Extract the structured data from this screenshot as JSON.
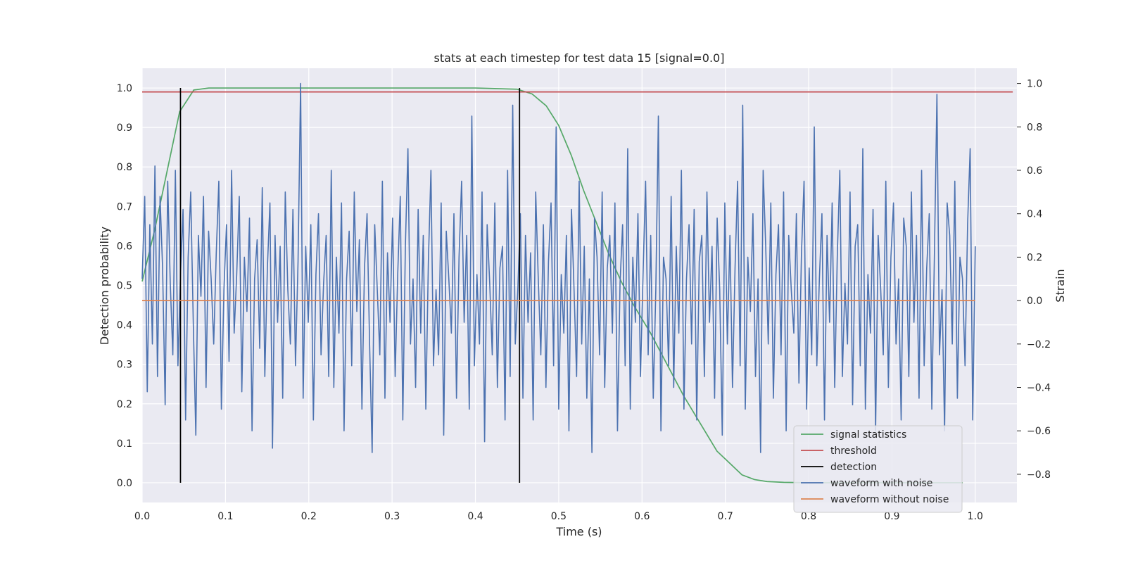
{
  "chart_data": {
    "type": "line",
    "title": "stats at each timestep for test data 15 [signal=0.0]",
    "xlabel": "Time (s)",
    "ylabel": "Detection probability",
    "y2label": "Strain",
    "xlim": [
      0.0,
      1.05
    ],
    "ylim": [
      -0.05,
      1.05
    ],
    "y2lim": [
      -0.93,
      1.07
    ],
    "grid": true,
    "legend_position": "lower right",
    "xticks": [
      0.0,
      0.1,
      0.2,
      0.3,
      0.4,
      0.5,
      0.6,
      0.7,
      0.8,
      0.9,
      1.0
    ],
    "xtick_labels": [
      "0.0",
      "0.1",
      "0.2",
      "0.3",
      "0.4",
      "0.5",
      "0.6",
      "0.7",
      "0.8",
      "0.9",
      "1.0"
    ],
    "yticks": [
      0.0,
      0.1,
      0.2,
      0.3,
      0.4,
      0.5,
      0.6,
      0.7,
      0.8,
      0.9,
      1.0
    ],
    "ytick_labels": [
      "0.0",
      "0.1",
      "0.2",
      "0.3",
      "0.4",
      "0.5",
      "0.6",
      "0.7",
      "0.8",
      "0.9",
      "1.0"
    ],
    "y2ticks": [
      -0.8,
      -0.6,
      -0.4,
      -0.2,
      0.0,
      0.2,
      0.4,
      0.6,
      0.8,
      1.0
    ],
    "y2tick_labels": [
      "−0.8",
      "−0.6",
      "−0.4",
      "−0.2",
      "0.0",
      "0.2",
      "0.4",
      "0.6",
      "0.8",
      "1.0"
    ],
    "colors": {
      "background": "#eaeaf2",
      "grid": "#ffffff",
      "signal_statistics": "#55a868",
      "threshold": "#c44e52",
      "detection": "#000000",
      "waveform_with_noise": "#4c72b0",
      "waveform_without_noise": "#dd8452"
    },
    "series": [
      {
        "name": "signal statistics",
        "axis": "left",
        "x": [
          0.0,
          0.015,
          0.03,
          0.045,
          0.062,
          0.08,
          0.1,
          0.2,
          0.3,
          0.4,
          0.45,
          0.468,
          0.485,
          0.5,
          0.515,
          0.53,
          0.545,
          0.56,
          0.575,
          0.59,
          0.61,
          0.63,
          0.65,
          0.67,
          0.69,
          0.705,
          0.72,
          0.735,
          0.75,
          0.77,
          0.8,
          0.85,
          0.9,
          0.95,
          0.985
        ],
        "y": [
          0.51,
          0.64,
          0.79,
          0.94,
          0.995,
          1.0,
          1.0,
          1.0,
          1.0,
          1.0,
          0.997,
          0.985,
          0.955,
          0.905,
          0.83,
          0.74,
          0.66,
          0.58,
          0.51,
          0.45,
          0.38,
          0.3,
          0.22,
          0.15,
          0.08,
          0.05,
          0.02,
          0.008,
          0.003,
          0.001,
          0.0,
          0.0,
          0.0,
          0.0,
          0.0
        ]
      },
      {
        "name": "threshold",
        "axis": "left",
        "x": [
          0.0,
          1.045
        ],
        "y": [
          0.99,
          0.99
        ]
      },
      {
        "name": "detection",
        "axis": "left",
        "segments": [
          {
            "x": 0.046,
            "y": [
              0.0,
              1.0
            ]
          },
          {
            "x": 0.453,
            "y": [
              0.0,
              1.0
            ]
          }
        ]
      },
      {
        "name": "waveform with noise",
        "axis": "right",
        "x_range": [
          0.0,
          1.0
        ],
        "y": [
          0.1,
          0.48,
          -0.42,
          0.35,
          -0.2,
          0.62,
          -0.35,
          0.48,
          0.15,
          -0.48,
          0.55,
          0.08,
          -0.25,
          0.6,
          -0.3,
          0.12,
          0.42,
          -0.55,
          0.2,
          0.5,
          -0.1,
          -0.62,
          0.3,
          0.02,
          0.48,
          -0.4,
          0.32,
          0.1,
          -0.2,
          0.22,
          0.55,
          -0.5,
          0.05,
          0.35,
          -0.28,
          0.6,
          -0.15,
          0.12,
          0.48,
          -0.42,
          0.2,
          -0.05,
          0.38,
          -0.6,
          0.1,
          0.28,
          -0.22,
          0.52,
          -0.35,
          0.15,
          0.45,
          -0.68,
          0.3,
          -0.1,
          0.25,
          -0.45,
          0.5,
          0.05,
          -0.2,
          0.42,
          -0.3,
          0.18,
          1.0,
          -0.45,
          0.25,
          -0.1,
          0.35,
          -0.55,
          0.12,
          0.4,
          -0.25,
          0.08,
          0.3,
          -0.35,
          0.6,
          -0.4,
          0.2,
          -0.15,
          0.45,
          -0.6,
          0.1,
          0.32,
          -0.3,
          0.5,
          -0.05,
          0.28,
          -0.5,
          0.15,
          0.4,
          -0.2,
          -0.7,
          0.35,
          0.05,
          -0.25,
          0.55,
          -0.45,
          0.22,
          -0.1,
          0.38,
          -0.35,
          0.12,
          0.48,
          -0.55,
          0.25,
          0.7,
          -0.2,
          0.1,
          -0.4,
          0.42,
          -0.15,
          0.3,
          -0.5,
          0.18,
          0.6,
          -0.3,
          0.05,
          -0.25,
          0.45,
          -0.62,
          0.32,
          0.1,
          -0.15,
          0.4,
          -0.45,
          0.2,
          0.55,
          -0.1,
          0.3,
          -0.5,
          0.85,
          -0.3,
          0.12,
          -0.2,
          0.5,
          -0.65,
          0.35,
          0.08,
          -0.25,
          0.45,
          -0.4,
          0.15,
          0.25,
          -0.55,
          0.6,
          -0.35,
          0.9,
          -0.2,
          0.05,
          0.4,
          -0.45,
          0.3,
          -0.1,
          0.22,
          -0.55,
          0.5,
          0.1,
          -0.25,
          0.35,
          -0.4,
          0.18,
          0.45,
          -0.3,
          0.8,
          -0.5,
          0.12,
          -0.15,
          0.3,
          -0.6,
          0.42,
          0.05,
          -0.35,
          0.55,
          -0.2,
          0.25,
          -0.45,
          0.1,
          -0.7,
          0.38,
          0.2,
          -0.25,
          0.5,
          -0.4,
          0.15,
          0.3,
          -0.15,
          0.45,
          -0.6,
          0.08,
          0.35,
          -0.3,
          0.7,
          -0.5,
          0.2,
          -0.1,
          0.4,
          -0.35,
          0.12,
          0.55,
          -0.25,
          0.3,
          -0.45,
          0.05,
          0.85,
          -0.6,
          0.2,
          0.1,
          -0.3,
          0.48,
          -0.4,
          0.25,
          -0.15,
          0.6,
          -0.5,
          0.1,
          0.35,
          -0.2,
          0.42,
          -0.55,
          0.18,
          0.3,
          -0.35,
          0.5,
          -0.1,
          0.25,
          -0.45,
          0.38,
          0.05,
          -0.62,
          0.45,
          -0.2,
          0.3,
          -0.4,
          0.15,
          0.55,
          -0.3,
          0.9,
          -0.5,
          0.2,
          -0.05,
          0.4,
          -0.35,
          0.1,
          -0.7,
          0.6,
          0.25,
          -0.2,
          0.45,
          -0.45,
          0.12,
          0.35,
          -0.25,
          0.5,
          -0.6,
          0.3,
          0.05,
          -0.15,
          0.4,
          -0.38,
          0.22,
          0.55,
          -0.5,
          0.15,
          -0.25,
          0.8,
          -0.3,
          0.1,
          0.4,
          -0.55,
          0.3,
          -0.1,
          0.45,
          -0.4,
          0.2,
          0.6,
          -0.35,
          0.08,
          -0.2,
          0.5,
          -0.48,
          0.25,
          0.35,
          -0.3,
          0.7,
          -0.5,
          0.12,
          -0.15,
          0.42,
          -0.6,
          0.3,
          0.05,
          -0.25,
          0.55,
          -0.4,
          0.2,
          0.45,
          -0.2,
          0.1,
          -0.55,
          0.38,
          0.25,
          -0.35,
          0.5,
          -0.1,
          0.3,
          -0.45,
          0.6,
          -0.3,
          0.15,
          0.4,
          -0.5,
          0.2,
          0.95,
          -0.25,
          0.05,
          -0.6,
          0.45,
          0.3,
          -0.2,
          0.55,
          -0.45,
          0.2,
          0.1,
          -0.3,
          0.35,
          0.7,
          -0.55,
          0.25
        ],
        "axis_note": "values are strain; plotted against right axis"
      },
      {
        "name": "waveform without noise",
        "axis": "right",
        "x": [
          0.0,
          1.0
        ],
        "y": [
          0.0,
          0.0
        ]
      }
    ],
    "legend": [
      "signal statistics",
      "threshold",
      "detection",
      "waveform with noise",
      "waveform without noise"
    ]
  }
}
